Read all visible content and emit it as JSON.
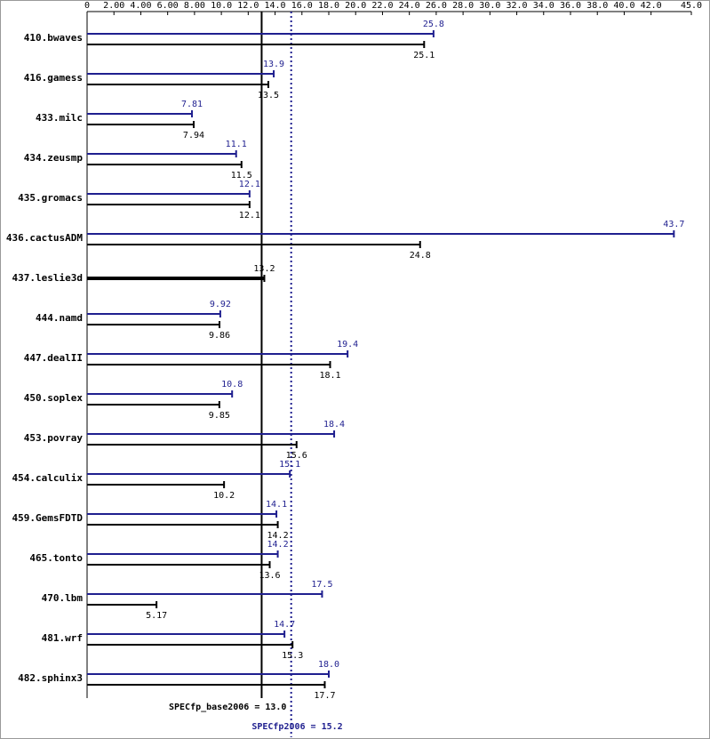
{
  "chart_data": {
    "type": "spec-bars",
    "categories": [
      "410.bwaves",
      "416.gamess",
      "433.milc",
      "434.zeusmp",
      "435.gromacs",
      "436.cactusADM",
      "437.leslie3d",
      "444.namd",
      "447.dealII",
      "450.soplex",
      "453.povray",
      "454.calculix",
      "459.GemsFDTD",
      "465.tonto",
      "470.lbm",
      "481.wrf",
      "482.sphinx3"
    ],
    "series": [
      {
        "color": "#1f1f8f",
        "values": [
          25.8,
          13.9,
          7.81,
          11.1,
          12.1,
          43.7,
          null,
          9.92,
          19.4,
          10.8,
          18.4,
          15.1,
          14.1,
          14.2,
          17.5,
          14.7,
          18.0
        ],
        "value_labels": [
          "25.8",
          "13.9",
          "7.81",
          "11.1",
          "12.1",
          "43.7",
          null,
          "9.92",
          "19.4",
          "10.8",
          "18.4",
          "15.1",
          "14.1",
          "14.2",
          "17.5",
          "14.7",
          "18.0"
        ]
      },
      {
        "color": "#000000",
        "values": [
          25.1,
          13.5,
          7.94,
          11.5,
          12.1,
          24.8,
          13.2,
          9.86,
          18.1,
          9.85,
          15.6,
          10.2,
          14.2,
          13.6,
          5.17,
          15.3,
          17.7
        ],
        "value_labels": [
          "25.1",
          "13.5",
          "7.94",
          "11.5",
          "12.1",
          "24.8",
          "13.2",
          "9.86",
          "18.1",
          "9.85",
          "15.6",
          "10.2",
          "14.2",
          "13.6",
          "5.17",
          "15.3",
          "17.7"
        ]
      }
    ],
    "xlim": [
      0,
      45
    ],
    "xticks": [
      0,
      {
        "value": 2,
        "label": "2.00"
      },
      {
        "value": 4,
        "label": "4.00"
      },
      {
        "value": 6,
        "label": "6.00"
      },
      {
        "value": 8,
        "label": "8.00"
      },
      {
        "value": 10,
        "label": "10.0"
      },
      {
        "value": 12,
        "label": "12.0"
      },
      {
        "value": 14,
        "label": "14.0"
      },
      {
        "value": 16,
        "label": "16.0"
      },
      {
        "value": 18,
        "label": "18.0"
      },
      {
        "value": 20,
        "label": "20.0"
      },
      {
        "value": 22,
        "label": "22.0"
      },
      {
        "value": 24,
        "label": "24.0"
      },
      {
        "value": 26,
        "label": "26.0"
      },
      {
        "value": 28,
        "label": "28.0"
      },
      {
        "value": 30,
        "label": "30.0"
      },
      {
        "value": 32,
        "label": "32.0"
      },
      {
        "value": 34,
        "label": "34.0"
      },
      {
        "value": 36,
        "label": "36.0"
      },
      {
        "value": 38,
        "label": "38.0"
      },
      {
        "value": 40,
        "label": "40.0"
      },
      {
        "value": 42,
        "label": "42.0"
      },
      {
        "value": 45,
        "label": "45.0"
      }
    ],
    "base_summary": {
      "value": 13.0,
      "label": "SPECfp_base2006 = 13.0"
    },
    "peak_summary": {
      "value": 15.2,
      "label": "SPECfp2006 = 15.2"
    }
  }
}
